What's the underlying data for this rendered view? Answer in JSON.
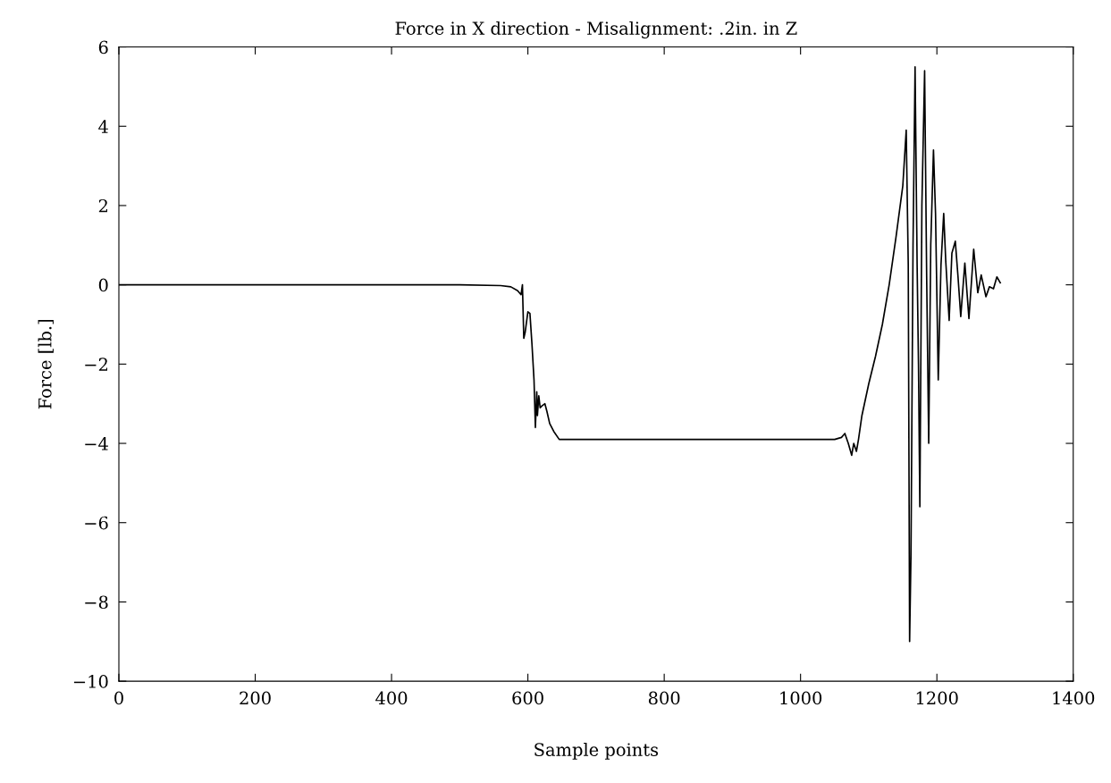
{
  "chart_data": {
    "type": "line",
    "title": "Force in X direction - Misalignment: .2in. in Z",
    "xlabel": "Sample points",
    "ylabel": "Force [lb.]",
    "series": [
      {
        "color": "#000000",
        "x": [
          0,
          100,
          200,
          300,
          400,
          500,
          560,
          575,
          585,
          590,
          592,
          594,
          596,
          600,
          603,
          606,
          609,
          611,
          613,
          614,
          616,
          618,
          621,
          625,
          628,
          632,
          638,
          646,
          700,
          800,
          900,
          1000,
          1050,
          1060,
          1065,
          1070,
          1075,
          1078,
          1082,
          1085,
          1090,
          1100,
          1110,
          1120,
          1130,
          1140,
          1150,
          1155,
          1158,
          1160,
          1162,
          1165,
          1168,
          1171,
          1173,
          1175,
          1178,
          1182,
          1185,
          1188,
          1191,
          1195,
          1198,
          1202,
          1206,
          1210,
          1213,
          1218,
          1222,
          1227,
          1231,
          1235,
          1241,
          1247,
          1254,
          1260,
          1265,
          1272,
          1277,
          1283,
          1288,
          1293
        ],
        "values": [
          0,
          0,
          0,
          0,
          0,
          0,
          -0.02,
          -0.05,
          -0.15,
          -0.25,
          0,
          -1.35,
          -1.2,
          -0.68,
          -0.72,
          -1.5,
          -2.4,
          -3.6,
          -2.7,
          -3.3,
          -2.8,
          -3.1,
          -3.05,
          -3.0,
          -3.2,
          -3.5,
          -3.7,
          -3.9,
          -3.9,
          -3.9,
          -3.9,
          -3.9,
          -3.9,
          -3.85,
          -3.75,
          -4.0,
          -4.3,
          -4.0,
          -4.2,
          -3.9,
          -3.3,
          -2.5,
          -1.8,
          -1.0,
          0.0,
          1.2,
          2.5,
          3.9,
          0.5,
          -9.0,
          -6.8,
          1.0,
          5.5,
          0.5,
          -2.0,
          -5.6,
          2.0,
          5.4,
          0.2,
          -4.0,
          1.0,
          3.4,
          1.8,
          -2.4,
          0.5,
          1.8,
          0.6,
          -0.9,
          0.8,
          1.1,
          0.2,
          -0.8,
          0.55,
          -0.85,
          0.9,
          -0.2,
          0.25,
          -0.3,
          -0.05,
          -0.1,
          0.2,
          0.05
        ]
      }
    ],
    "xlim": [
      0,
      1400
    ],
    "ylim": [
      -10,
      6
    ],
    "xticks": [
      0,
      200,
      400,
      600,
      800,
      1000,
      1200,
      1400
    ],
    "yticks": [
      {
        "value": -10,
        "label": "−10"
      },
      {
        "value": -8,
        "label": "−8"
      },
      {
        "value": -6,
        "label": "−6"
      },
      {
        "value": -4,
        "label": "−4"
      },
      {
        "value": -2,
        "label": "−2"
      },
      0,
      2,
      4,
      6
    ],
    "grid": false,
    "legend": false,
    "marker": "none",
    "line_style": "solid"
  }
}
